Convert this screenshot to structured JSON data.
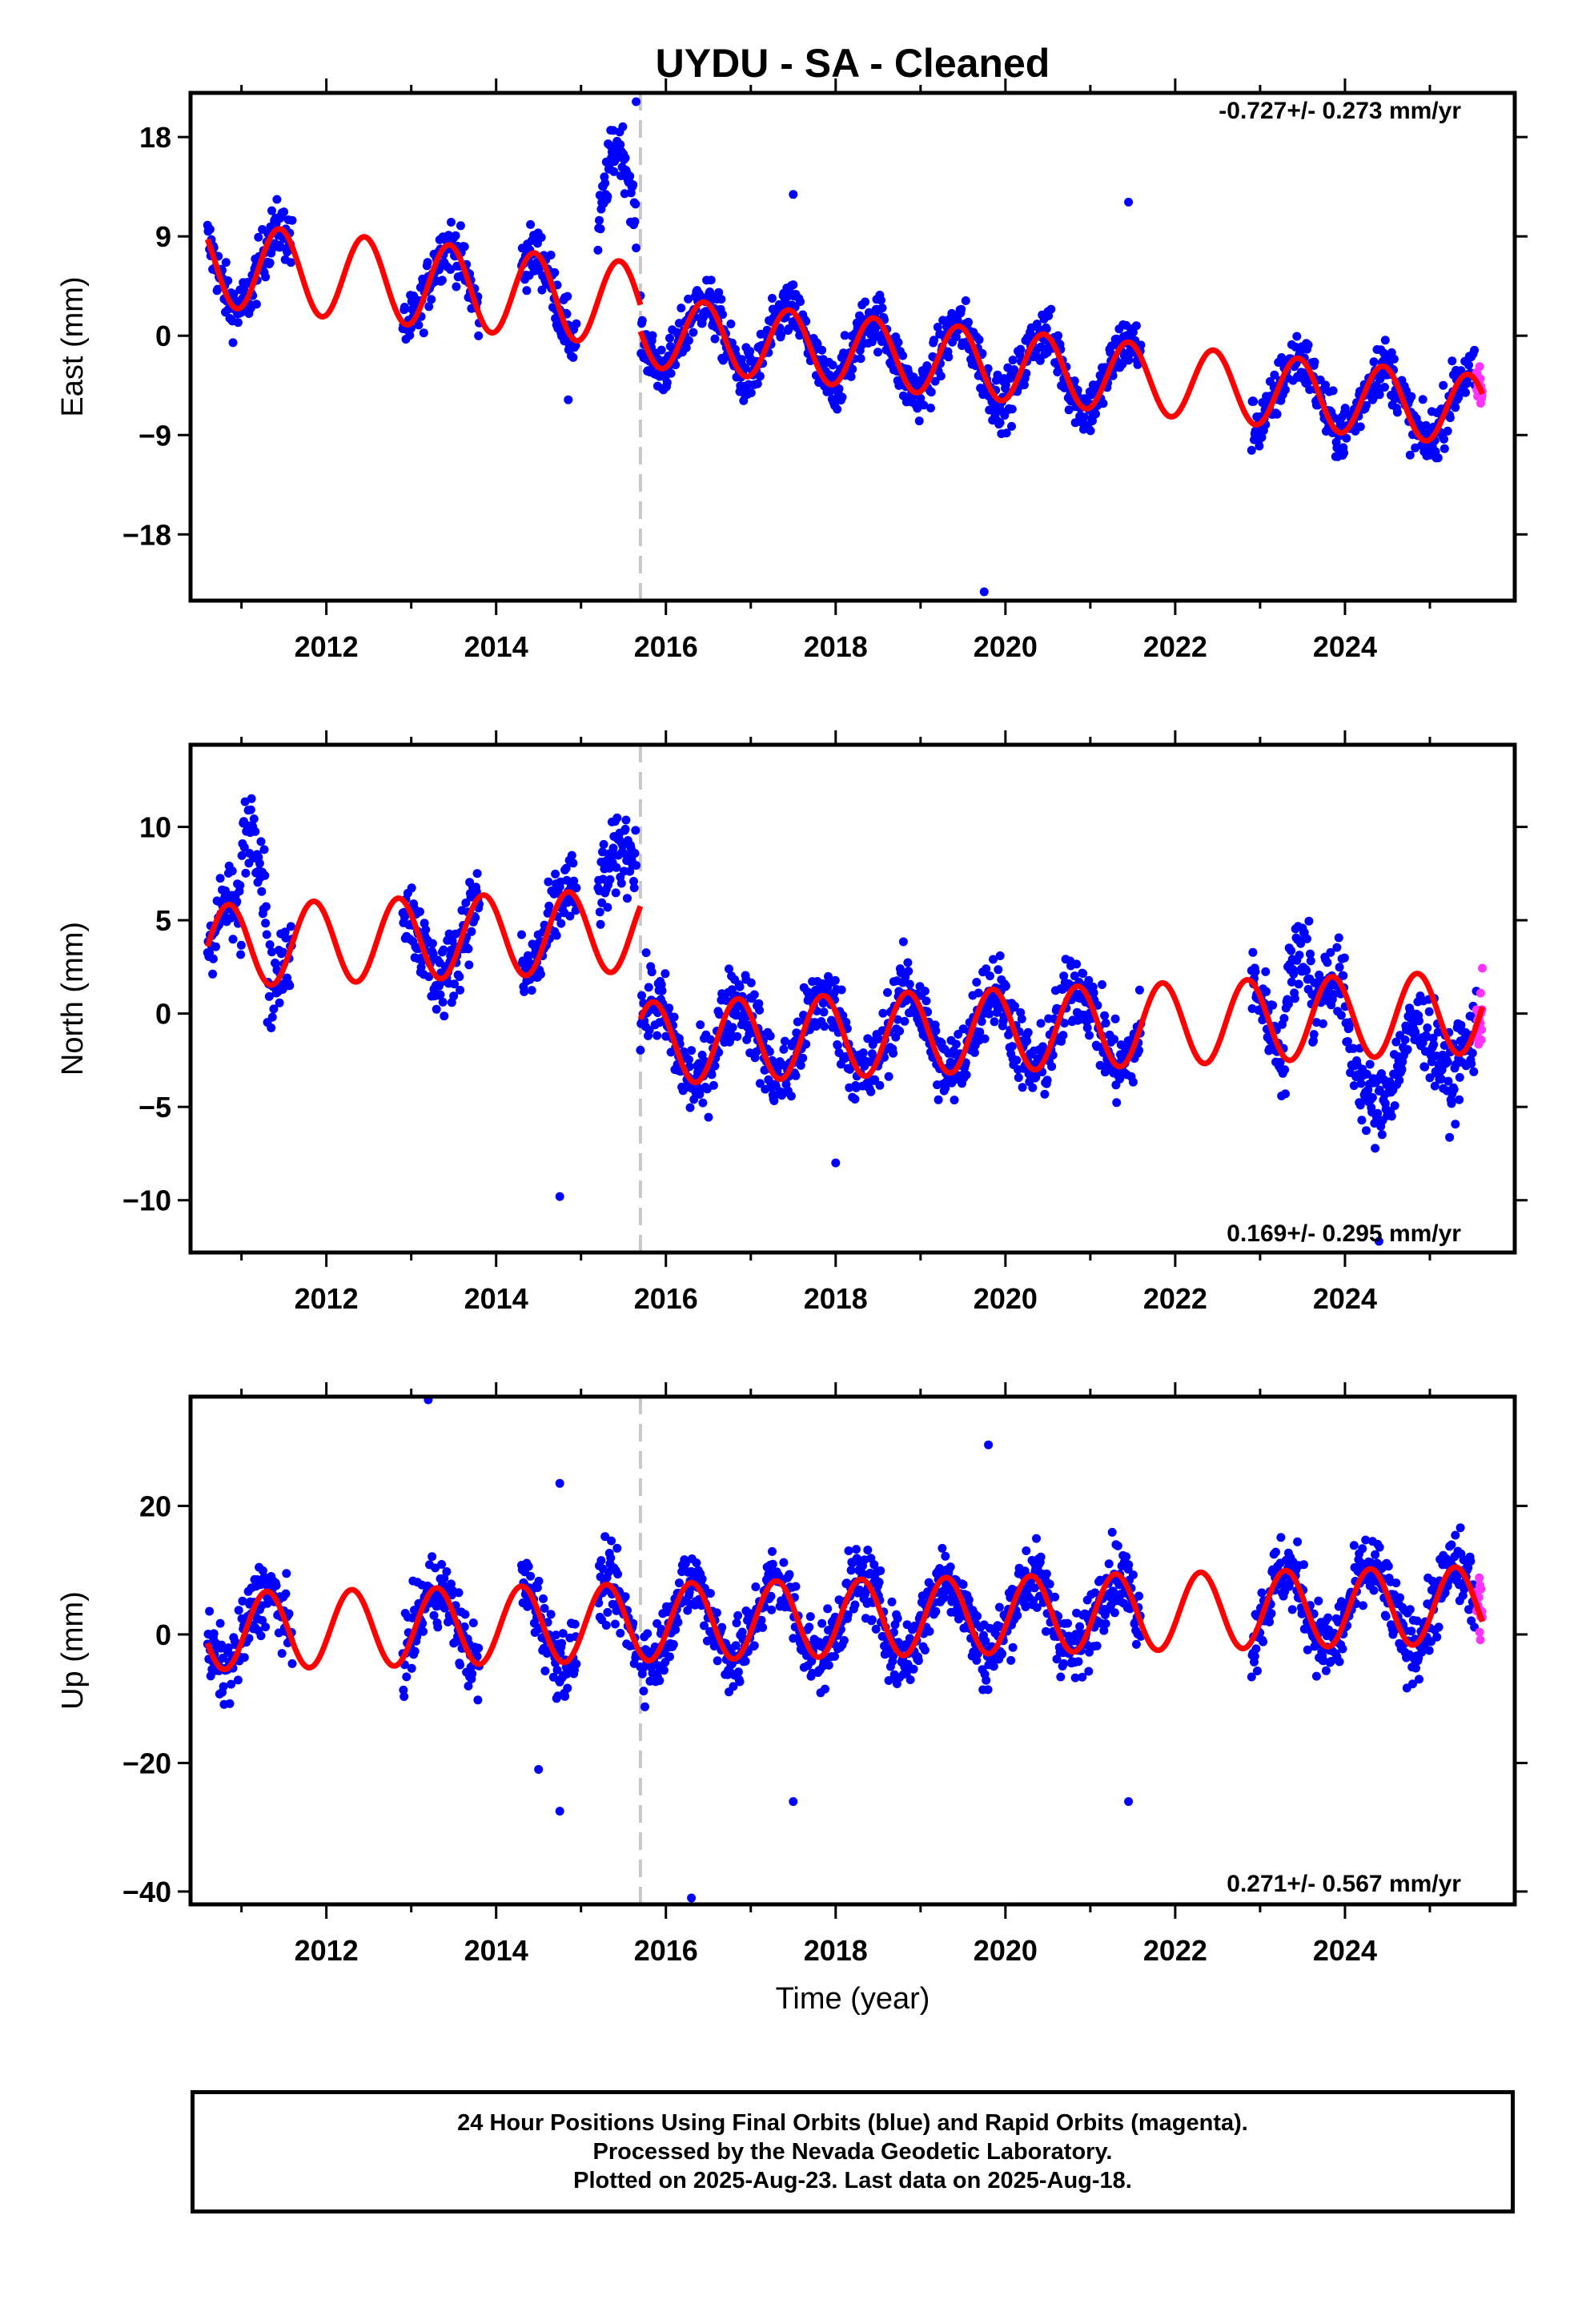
{
  "title": "UYDU  - SA - Cleaned",
  "xlabel": "Time (year)",
  "footer": {
    "line1": "24 Hour Positions Using Final Orbits (blue) and Rapid Orbits (magenta).",
    "line2": "Processed by the Nevada Geodetic Laboratory.",
    "line3": "Plotted on 2025-Aug-23. Last data on 2025-Aug-18."
  },
  "colors": {
    "final": "#0000ff",
    "rapid": "#ff33ff",
    "model": "#ff0000",
    "event": "#c8c8c8"
  },
  "chart_data": [
    {
      "type": "scatter",
      "panel": "east",
      "ylabel": "East (mm)",
      "xlim": [
        2010.4,
        2026.0
      ],
      "ylim": [
        -24,
        22
      ],
      "yticks": [
        18,
        9,
        0,
        -9,
        -18
      ],
      "yticklabels": [
        "18",
        "9",
        "0",
        "−9",
        "−18"
      ],
      "xticks": [
        2012,
        2014,
        2016,
        2018,
        2020,
        2022,
        2024
      ],
      "xticklabels": [
        "2012",
        "2014",
        "2016",
        "2018",
        "2020",
        "2022",
        "2024"
      ],
      "rate": "-0.727+/- 0.273 mm/yr",
      "event_line": 2015.7,
      "data_segments": [
        [
          2010.6,
          2011.6
        ],
        [
          2012.9,
          2013.8
        ],
        [
          2014.3,
          2014.95
        ],
        [
          2015.2,
          2015.65
        ],
        [
          2015.7,
          2021.6
        ],
        [
          2022.9,
          2025.55
        ]
      ],
      "rapid_range": [
        2025.55,
        2025.62
      ],
      "model": {
        "pieces": [
          {
            "t0": 2010.6,
            "t1": 2015.7,
            "offset": 6.5,
            "rate": -0.727,
            "amp": 3.8
          },
          {
            "t0": 2015.7,
            "t1": 2025.62,
            "offset": 0.4,
            "rate": -0.727,
            "amp": 3.2
          }
        ],
        "phase": 0.2
      },
      "noise": 1.8,
      "bumps": [
        {
          "t0": 2015.2,
          "t1": 2015.65,
          "shift": 10.5
        },
        {
          "t0": 2010.6,
          "t1": 2011.6,
          "shift": 0.0
        }
      ],
      "outliers": [
        [
          2015.65,
          21.2
        ],
        [
          2014.85,
          -5.8
        ],
        [
          2019.75,
          -23.2
        ],
        [
          2017.5,
          12.8
        ],
        [
          2021.45,
          12.1
        ]
      ]
    },
    {
      "type": "scatter",
      "panel": "north",
      "ylabel": "North (mm)",
      "xlim": [
        2010.4,
        2026.0
      ],
      "ylim": [
        -12.8,
        14.4
      ],
      "yticks": [
        10,
        5,
        0,
        -5,
        -10
      ],
      "yticklabels": [
        "10",
        "5",
        "0",
        "−5",
        "−10"
      ],
      "xticks": [
        2012,
        2014,
        2016,
        2018,
        2020,
        2022,
        2024
      ],
      "xticklabels": [
        "2012",
        "2014",
        "2016",
        "2018",
        "2020",
        "2022",
        "2024"
      ],
      "rate": "0.169+/- 0.295 mm/yr",
      "event_line": 2015.7,
      "data_segments": [
        [
          2010.6,
          2011.6
        ],
        [
          2012.9,
          2013.8
        ],
        [
          2014.3,
          2014.95
        ],
        [
          2015.2,
          2015.65
        ],
        [
          2015.7,
          2021.6
        ],
        [
          2022.9,
          2025.55
        ]
      ],
      "rapid_range": [
        2025.55,
        2025.62
      ],
      "model": {
        "pieces": [
          {
            "t0": 2010.6,
            "t1": 2015.7,
            "offset": 3.6,
            "rate": 0.169,
            "amp": 2.2
          },
          {
            "t0": 2015.7,
            "t1": 2025.62,
            "offset": -1.6,
            "rate": 0.169,
            "amp": 2.2
          }
        ],
        "phase": 0.6
      },
      "noise": 1.5,
      "bumps": [
        {
          "t0": 2011.0,
          "t1": 2011.3,
          "shift": 7.0
        },
        {
          "t0": 2015.2,
          "t1": 2015.65,
          "shift": 6.0
        },
        {
          "t0": 2023.3,
          "t1": 2023.6,
          "shift": 5.5
        },
        {
          "t0": 2024.0,
          "t1": 2025.3,
          "shift": -3.0
        }
      ],
      "outliers": [
        [
          2014.75,
          -9.8
        ],
        [
          2018.0,
          -8.0
        ],
        [
          2024.4,
          -12.2
        ]
      ]
    },
    {
      "type": "scatter",
      "panel": "up",
      "ylabel": "Up (mm)",
      "xlim": [
        2010.4,
        2026.0
      ],
      "ylim": [
        -42,
        37
      ],
      "yticks": [
        20,
        0,
        -20,
        -40
      ],
      "yticklabels": [
        "20",
        "0",
        "−20",
        "−40"
      ],
      "xticks": [
        2012,
        2014,
        2016,
        2018,
        2020,
        2022,
        2024
      ],
      "xticklabels": [
        "2012",
        "2014",
        "2016",
        "2018",
        "2020",
        "2022",
        "2024"
      ],
      "rate": "0.271+/- 0.567 mm/yr",
      "event_line": 2015.7,
      "data_segments": [
        [
          2010.6,
          2011.6
        ],
        [
          2012.9,
          2013.8
        ],
        [
          2014.3,
          2014.95
        ],
        [
          2015.2,
          2015.65
        ],
        [
          2015.7,
          2021.6
        ],
        [
          2022.9,
          2025.55
        ]
      ],
      "rapid_range": [
        2025.55,
        2025.62
      ],
      "model": {
        "pieces": [
          {
            "t0": 2010.6,
            "t1": 2025.62,
            "offset": 0.5,
            "rate": 0.271,
            "amp": 6.0
          }
        ],
        "phase": 0.05
      },
      "noise": 4.0,
      "bumps": [],
      "outliers": [
        [
          2013.2,
          36.5
        ],
        [
          2019.8,
          29.5
        ],
        [
          2014.75,
          23.5
        ],
        [
          2014.5,
          -21.0
        ],
        [
          2014.75,
          -27.5
        ],
        [
          2016.3,
          -41.0
        ],
        [
          2017.5,
          -26.0
        ],
        [
          2021.45,
          -26.0
        ]
      ]
    }
  ]
}
